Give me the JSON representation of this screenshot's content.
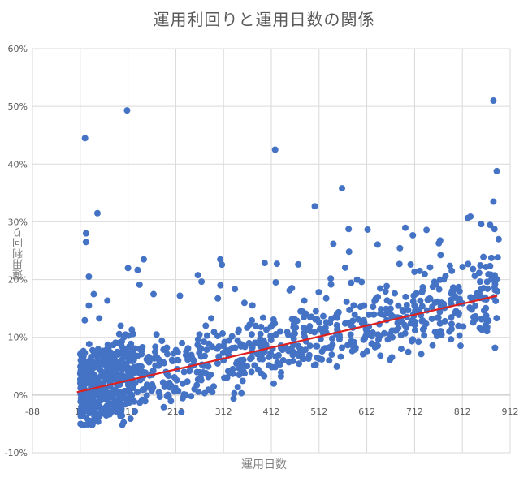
{
  "chart_data": {
    "type": "scatter",
    "title": "運用利回りと運用日数の関係",
    "xlabel": "運用日数",
    "ylabel": "運用利回り",
    "xlim": [
      -88,
      912
    ],
    "ylim": [
      -10,
      60
    ],
    "x_ticks": [
      "-88",
      "12",
      "112",
      "212",
      "312",
      "412",
      "512",
      "612",
      "712",
      "812",
      "912"
    ],
    "y_ticks": [
      "-10%",
      "0%",
      "10%",
      "20%",
      "30%",
      "40%",
      "50%",
      "60%"
    ],
    "grid": true,
    "legend": "none",
    "colors": {
      "points": "#4472C4",
      "trendline": "#E0201E",
      "grid": "#D9D9D9"
    },
    "trendline": {
      "type": "linear",
      "x": [
        5,
        885
      ],
      "y": [
        0.5,
        17.2
      ]
    },
    "highlighted_points": {
      "x": [
        22,
        24,
        24,
        30,
        30,
        48,
        110,
        112,
        145,
        305,
        420,
        503,
        560,
        877,
        877,
        884,
        888
      ],
      "y": [
        44.5,
        28,
        26.5,
        20.5,
        15.5,
        31.5,
        49.3,
        22,
        23.5,
        23.5,
        42.5,
        32.7,
        35.8,
        51,
        33.5,
        38.8,
        27
      ]
    },
    "note": "Roughly 1,000 points following trend y ≈ 0.02·x, scattered; dense cluster near x 12–120, y −5%…10%."
  }
}
